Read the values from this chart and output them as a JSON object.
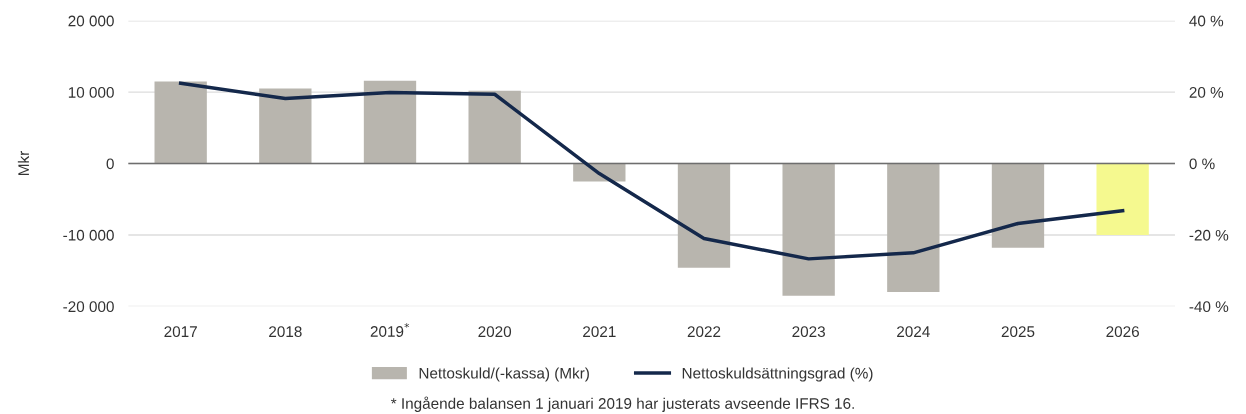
{
  "chart_data": {
    "type": "bar",
    "categories": [
      "2017",
      "2018",
      "2019$^{*}$",
      "2020",
      "2021",
      "2022",
      "2023",
      "2024",
      "2025",
      "2026"
    ],
    "ylabel": "Mkr",
    "series": [
      {
        "name": "Nettoskuld/(-kassa) (Mkr)",
        "color": "#b8b5ae",
        "colors": [
          "#b8b5ae",
          "#b8b5ae",
          "#b8b5ae",
          "#b8b5ae",
          "#b8b5ae",
          "#b8b5ae",
          "#b8b5ae",
          "#b8b5ae",
          "#b8b5ae",
          "#f5f98f"
        ],
        "values": [
          11500,
          10500,
          11600,
          10200,
          -2500,
          -14600,
          -18500,
          -18000,
          -11800,
          -10000
        ]
      },
      {
        "name": "Nettoskuldsättningsgrad (%)",
        "type": "line",
        "axis": "y2",
        "color": "#14284b",
        "values": [
          22.5,
          18.2,
          19.9,
          19.4,
          -2.8,
          -21,
          -26.7,
          -25,
          -16.8,
          -13.2
        ]
      }
    ],
    "ylim": [
      -20000,
      20000
    ],
    "yticks": [
      {
        "value": -20000,
        "label": "-20 000"
      },
      {
        "value": -10000,
        "label": "-10 000"
      },
      0,
      {
        "value": 10000,
        "label": "10 000"
      },
      {
        "value": 20000,
        "label": "20 000"
      }
    ],
    "y2lim": [
      -40,
      40
    ],
    "y2ticks": [
      {
        "value": -40,
        "label": "-40 %"
      },
      {
        "value": -20,
        "label": "-20 %"
      },
      {
        "value": 0,
        "label": "0 %"
      },
      {
        "value": 20,
        "label": "20 %"
      },
      {
        "value": 40,
        "label": "40 %"
      }
    ],
    "ref_lines": [
      {
        "axis": "y",
        "value": 0,
        "color": "#6e6e6e"
      }
    ],
    "grid": "y",
    "legend": "bottom",
    "marker": "none",
    "annotations": [
      "* Ingående balansen 1 januari 2019 har justerats avseende IFRS 16."
    ]
  }
}
